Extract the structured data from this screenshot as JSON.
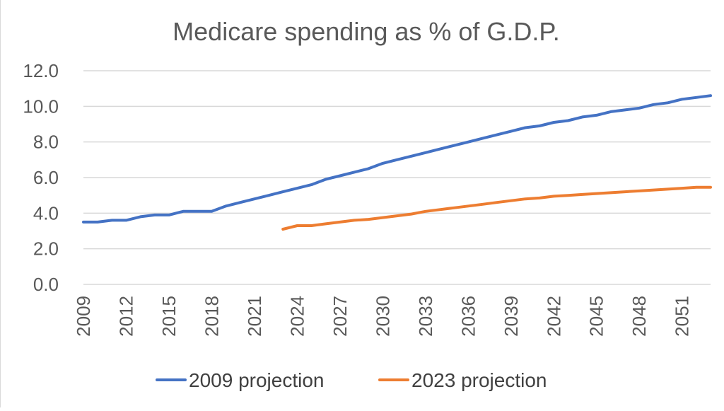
{
  "chart_data": {
    "type": "line",
    "title": "Medicare spending as % of G.D.P.",
    "xlabel": "",
    "ylabel": "",
    "ylim": [
      0,
      12
    ],
    "y_ticks": [
      "0.0",
      "2.0",
      "4.0",
      "6.0",
      "8.0",
      "10.0",
      "12.0"
    ],
    "x_range": [
      2009,
      2053
    ],
    "x_tick_labels": [
      "2009",
      "2012",
      "2015",
      "2018",
      "2021",
      "2024",
      "2027",
      "2030",
      "2033",
      "2036",
      "2039",
      "2042",
      "2045",
      "2048",
      "2051"
    ],
    "grid": true,
    "legend_position": "bottom",
    "series": [
      {
        "name": "2009 projection",
        "color": "#4472C4",
        "x": [
          2009,
          2010,
          2011,
          2012,
          2013,
          2014,
          2015,
          2016,
          2017,
          2018,
          2019,
          2020,
          2021,
          2022,
          2023,
          2024,
          2025,
          2026,
          2027,
          2028,
          2029,
          2030,
          2031,
          2032,
          2033,
          2034,
          2035,
          2036,
          2037,
          2038,
          2039,
          2040,
          2041,
          2042,
          2043,
          2044,
          2045,
          2046,
          2047,
          2048,
          2049,
          2050,
          2051,
          2052,
          2053
        ],
        "values": [
          3.5,
          3.5,
          3.6,
          3.6,
          3.8,
          3.9,
          3.9,
          4.1,
          4.1,
          4.1,
          4.4,
          4.6,
          4.8,
          5.0,
          5.2,
          5.4,
          5.6,
          5.9,
          6.1,
          6.3,
          6.5,
          6.8,
          7.0,
          7.2,
          7.4,
          7.6,
          7.8,
          8.0,
          8.2,
          8.4,
          8.6,
          8.8,
          8.9,
          9.1,
          9.2,
          9.4,
          9.5,
          9.7,
          9.8,
          9.9,
          10.1,
          10.2,
          10.4,
          10.5,
          10.6
        ]
      },
      {
        "name": "2023 projection",
        "color": "#ED7D31",
        "x": [
          2023,
          2024,
          2025,
          2026,
          2027,
          2028,
          2029,
          2030,
          2031,
          2032,
          2033,
          2034,
          2035,
          2036,
          2037,
          2038,
          2039,
          2040,
          2041,
          2042,
          2043,
          2044,
          2045,
          2046,
          2047,
          2048,
          2049,
          2050,
          2051,
          2052,
          2053
        ],
        "values": [
          3.1,
          3.3,
          3.3,
          3.4,
          3.5,
          3.6,
          3.65,
          3.75,
          3.85,
          3.95,
          4.1,
          4.2,
          4.3,
          4.4,
          4.5,
          4.6,
          4.7,
          4.8,
          4.85,
          4.95,
          5.0,
          5.05,
          5.1,
          5.15,
          5.2,
          5.25,
          5.3,
          5.35,
          5.4,
          5.45,
          5.45
        ]
      }
    ]
  }
}
